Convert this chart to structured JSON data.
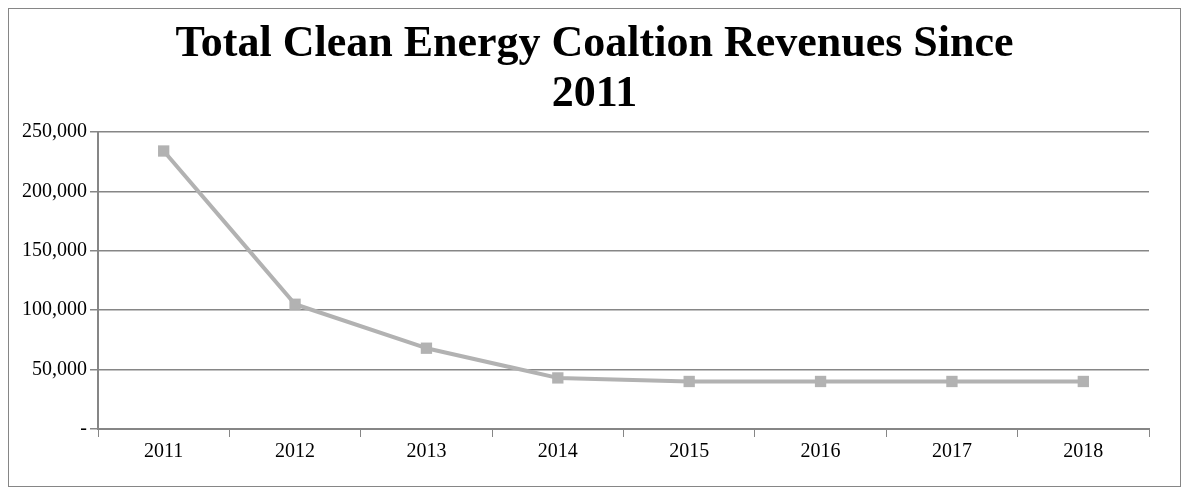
{
  "chart_data": {
    "type": "line",
    "title": "Total Clean Energy Coaltion Revenues Since 2011",
    "categories": [
      "2011",
      "2012",
      "2013",
      "2014",
      "2015",
      "2016",
      "2017",
      "2018"
    ],
    "series": [
      {
        "color": "#b2b2b2",
        "values": [
          234000,
          105000,
          68000,
          43000,
          40000,
          40000,
          40000,
          40000
        ]
      }
    ],
    "ylim": [
      0,
      250000
    ],
    "yticks": [
      {
        "value": 0,
        "label": "-"
      },
      {
        "value": 50000,
        "label": "50,000"
      },
      {
        "value": 100000,
        "label": "100,000"
      },
      {
        "value": 150000,
        "label": "150,000"
      },
      {
        "value": 200000,
        "label": "200,000"
      },
      {
        "value": 250000,
        "label": "250,000"
      }
    ],
    "grid": "y",
    "legend": false,
    "marker": "square",
    "line_style": "solid"
  }
}
